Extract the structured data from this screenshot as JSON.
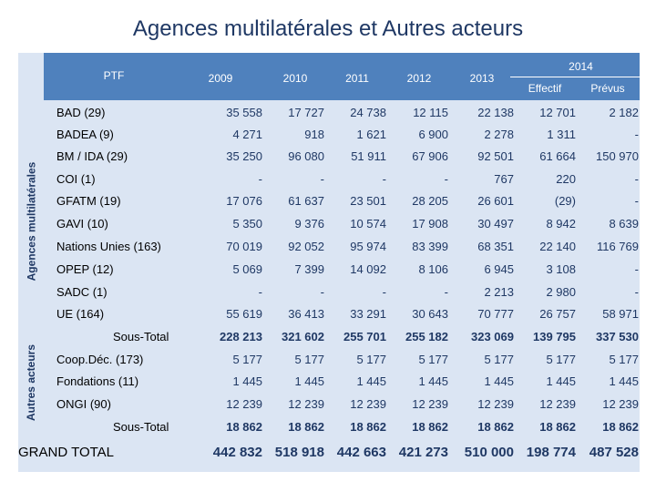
{
  "title": "Agences multilatérales et Autres acteurs",
  "colors": {
    "header_bg": "#4f81bd",
    "panel_bg": "#dbe5f3",
    "value_text": "#1f3864"
  },
  "header": {
    "ptf": "PTF",
    "years": [
      "2009",
      "2010",
      "2011",
      "2012",
      "2013"
    ],
    "y2014": "2014",
    "y2014_sub": [
      "Effectif",
      "Prévus"
    ]
  },
  "groups": {
    "multi": "Agences multilatérales",
    "autres": "Autres acteurs"
  },
  "rows": [
    {
      "label": "BAD (29)",
      "values": [
        "35 558",
        "17 727",
        "24 738",
        "12 115",
        "22 138",
        "12 701",
        "2 182"
      ]
    },
    {
      "label": "BADEA (9)",
      "values": [
        "4 271",
        "918",
        "1 621",
        "6 900",
        "2 278",
        "1 311",
        "-"
      ]
    },
    {
      "label": "BM / IDA (29)",
      "values": [
        "35 250",
        "96 080",
        "51 911",
        "67 906",
        "92 501",
        "61 664",
        "150 970"
      ]
    },
    {
      "label": "COI (1)",
      "values": [
        "-",
        "-",
        "-",
        "-",
        "767",
        "220",
        "-"
      ]
    },
    {
      "label": "GFATM (19)",
      "values": [
        "17 076",
        "61 637",
        "23 501",
        "28 205",
        "26 601",
        "(29)",
        "-"
      ]
    },
    {
      "label": "GAVI (10)",
      "values": [
        "5 350",
        "9 376",
        "10 574",
        "17 908",
        "30 497",
        "8 942",
        "8 639"
      ]
    },
    {
      "label": "Nations Unies (163)",
      "values": [
        "70 019",
        "92 052",
        "95 974",
        "83 399",
        "68 351",
        "22 140",
        "116 769"
      ]
    },
    {
      "label": "OPEP (12)",
      "values": [
        "5 069",
        "7 399",
        "14 092",
        "8 106",
        "6 945",
        "3 108",
        "-"
      ]
    },
    {
      "label": "SADC (1)",
      "values": [
        "-",
        "-",
        "-",
        "-",
        "2 213",
        "2 980",
        "-"
      ]
    },
    {
      "label": "UE (164)",
      "values": [
        "55 619",
        "36 413",
        "33 291",
        "30 643",
        "70 777",
        "26 757",
        "58 971"
      ]
    },
    {
      "label": "Sous-Total",
      "values": [
        "228 213",
        "321 602",
        "255 701",
        "255 182",
        "323 069",
        "139 795",
        "337 530"
      ]
    },
    {
      "label": "Coop.Déc. (173)",
      "values": [
        "5 177",
        "5 177",
        "5 177",
        "5 177",
        "5 177",
        "5 177",
        "5 177"
      ]
    },
    {
      "label": "Fondations (11)",
      "values": [
        "1 445",
        "1 445",
        "1 445",
        "1 445",
        "1 445",
        "1 445",
        "1 445"
      ]
    },
    {
      "label": "ONGI (90)",
      "values": [
        "12 239",
        "12 239",
        "12 239",
        "12 239",
        "12 239",
        "12 239",
        "12 239"
      ]
    },
    {
      "label": "Sous-Total",
      "values": [
        "18 862",
        "18 862",
        "18 862",
        "18 862",
        "18 862",
        "18 862",
        "18 862"
      ]
    }
  ],
  "grand_total": {
    "label": "GRAND TOTAL",
    "values": [
      "442 832",
      "518 918",
      "442 663",
      "421 273",
      "510 000",
      "198 774",
      "487 528"
    ]
  }
}
